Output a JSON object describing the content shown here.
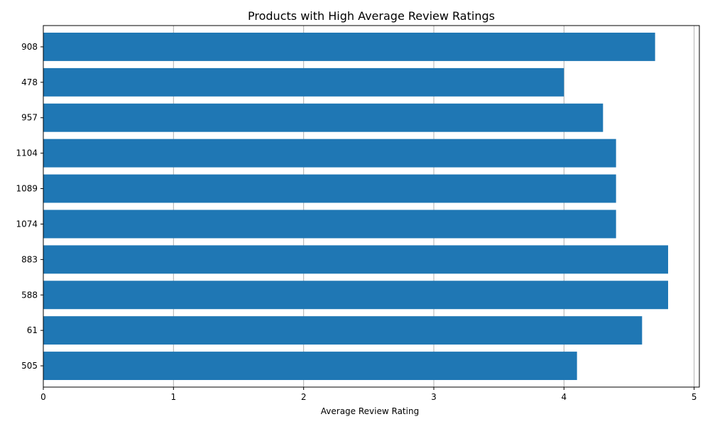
{
  "chart_data": {
    "type": "bar",
    "orientation": "horizontal",
    "title": "Products with High Average Review Ratings",
    "xlabel": "Average Review Rating",
    "ylabel": "",
    "categories": [
      "908",
      "478",
      "957",
      "1104",
      "1089",
      "1074",
      "883",
      "588",
      "61",
      "505"
    ],
    "values": [
      4.7,
      4.0,
      4.3,
      4.4,
      4.4,
      4.4,
      4.8,
      4.8,
      4.6,
      4.1
    ],
    "xlim": [
      0,
      5.04
    ],
    "xticks": [
      "0",
      "1",
      "2",
      "3",
      "4",
      "5"
    ],
    "grid": "vertical",
    "bar_color": "#1f77b4",
    "grid_color": "#b0b0b0",
    "axis_color": "#000000"
  }
}
